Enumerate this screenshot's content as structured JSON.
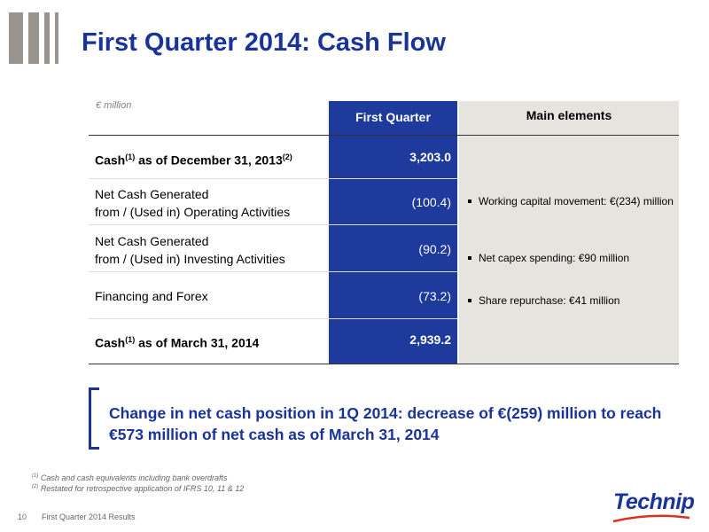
{
  "title": "First Quarter 2014: Cash Flow",
  "unit": "€ million",
  "headers": {
    "first_quarter": "First Quarter",
    "main_elements": "Main elements"
  },
  "rows": [
    {
      "label_main": "Cash",
      "label_sup1": "(1)",
      "label_mid": " as of December 31, 2013",
      "label_sup2": "(2)",
      "value": "3,203.0"
    },
    {
      "label_line1": "Net Cash Generated",
      "label_line2": "from / (Used in) Operating Activities",
      "value": "(100.4)"
    },
    {
      "label_line1": "Net Cash Generated",
      "label_line2": "from / (Used in) Investing Activities",
      "value": "(90.2)"
    },
    {
      "label": "Financing and Forex",
      "value": "(73.2)"
    },
    {
      "label_main": "Cash",
      "label_sup1": "(1)",
      "label_mid": " as of March 31, 2014",
      "value": "2,939.2"
    }
  ],
  "bullets": [
    "Working capital movement: €(234) million",
    "Net capex spending: €90 million",
    "Share repurchase: €41 million"
  ],
  "highlight": "Change in net cash position in 1Q 2014: decrease of €(259) million to reach €573 million of net cash as of March 31, 2014",
  "notes": [
    {
      "mark": "(1)",
      "text": " Cash and cash equivalents including bank overdrafts"
    },
    {
      "mark": "(2)",
      "text": " Restated for retrospective application of IFRS 10, 11 & 12"
    }
  ],
  "footer": {
    "page": "10",
    "text": "First Quarter 2014 Results"
  },
  "brand": "Technip",
  "colors": {
    "accent": "#1a3399",
    "column_blue": "#1e3a9c",
    "column_grey": "#e5e4df",
    "bars": "#9a948f"
  }
}
